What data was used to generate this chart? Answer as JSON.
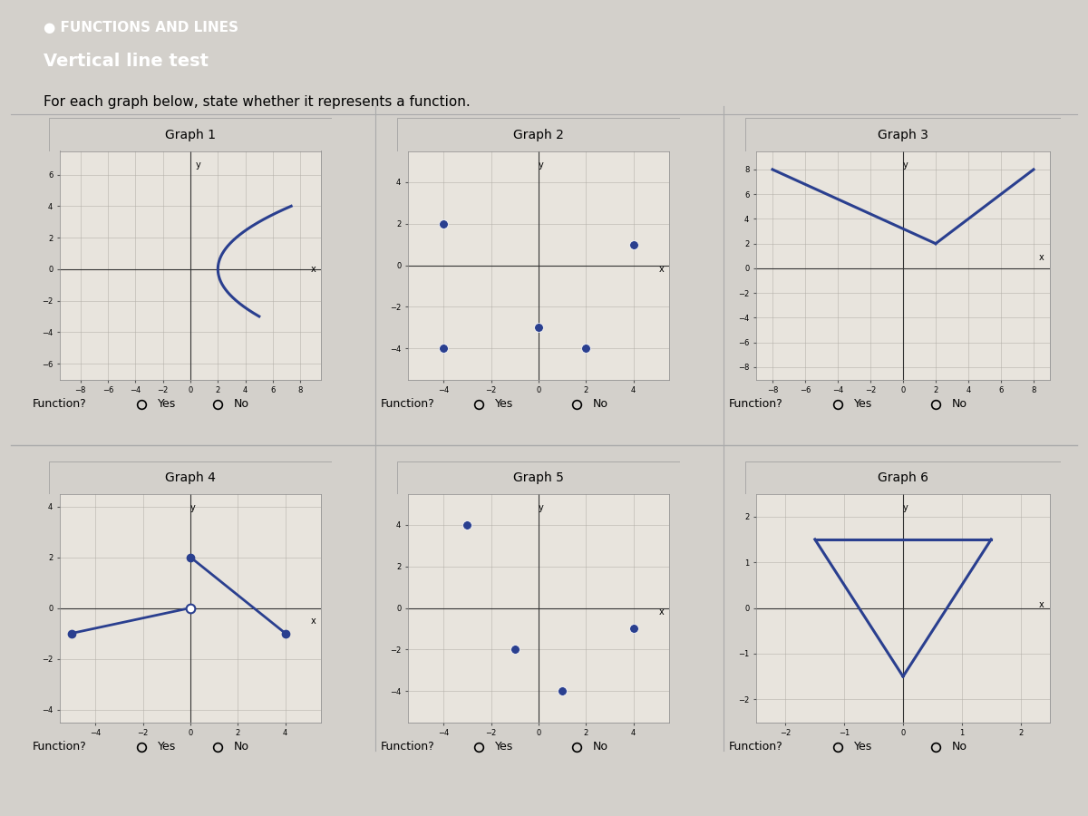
{
  "title_bar_color": "#2d6e75",
  "title_text": "FUNCTIONS AND LINES",
  "subtitle_text": "Vertical line test",
  "instruction": "For each graph below, state whether it represents a function.",
  "bg_color": "#d3d0cb",
  "graph_bg": "#e8e4dd",
  "grid_color": "#b0aca5",
  "axis_color": "#333333",
  "curve_color": "#2a3f8f",
  "dot_color": "#2a3f8f",
  "function_label": "Function?",
  "yes_label": "Yes",
  "no_label": "No",
  "graph_titles": [
    "Graph 1",
    "Graph 2",
    "Graph 3",
    "Graph 4",
    "Graph 5",
    "Graph 6"
  ]
}
